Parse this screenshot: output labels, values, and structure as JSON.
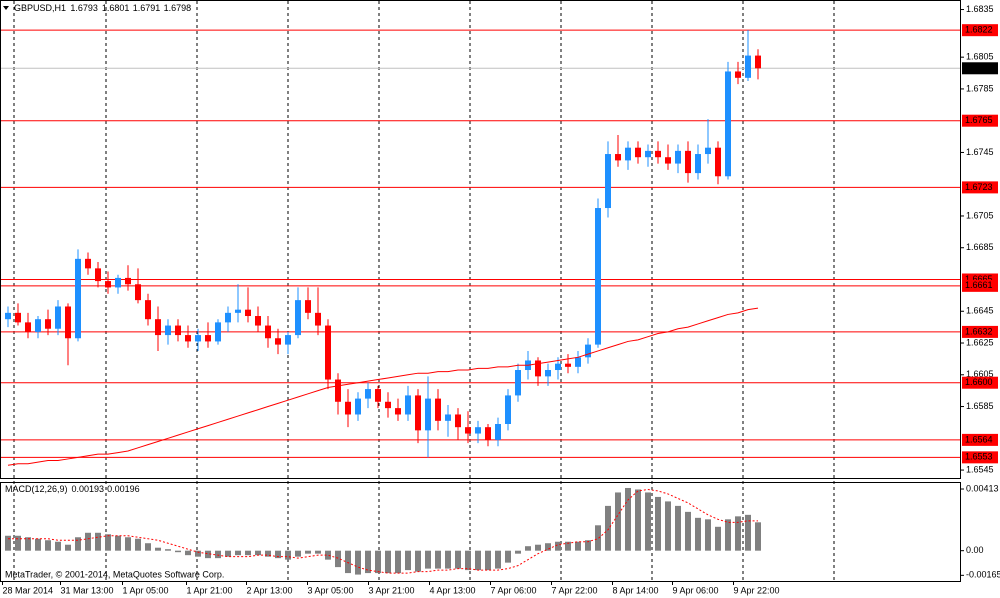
{
  "chart_data": [
    {
      "type": "candlestick",
      "title": "GBPUSD,H1",
      "header_values": [
        1.6793,
        1.6801,
        1.6791,
        1.6798
      ],
      "up_color": "#1e90ff",
      "down_color": "#ff0000",
      "open": [
        1.664,
        1.6644,
        1.6638,
        1.6632,
        1.664,
        1.6634,
        1.6648,
        1.6628,
        1.6678,
        1.6672,
        1.6664,
        1.666,
        1.6666,
        1.6662,
        1.6652,
        1.664,
        1.663,
        1.6636,
        1.663,
        1.6626,
        1.663,
        1.6626,
        1.6638,
        1.6644,
        1.6646,
        1.6642,
        1.6636,
        1.6628,
        1.6624,
        1.663,
        1.6652,
        1.6644,
        1.6636,
        1.6602,
        1.6588,
        1.658,
        1.659,
        1.6596,
        1.6588,
        1.6584,
        1.658,
        1.6592,
        1.657,
        1.659,
        1.6576,
        1.658,
        1.6572,
        1.6568,
        1.6572,
        1.6564,
        1.6574,
        1.6592,
        1.6608,
        1.6614,
        1.6604,
        1.6608,
        1.6612,
        1.661,
        1.6616,
        1.6624,
        1.671,
        1.6744,
        1.674,
        1.6748,
        1.6742,
        1.6746,
        1.6742,
        1.6738,
        1.6746,
        1.6732,
        1.6744,
        1.6748,
        1.673,
        1.6796,
        1.6792,
        1.6806
      ],
      "high": [
        1.6648,
        1.665,
        1.6644,
        1.6642,
        1.6646,
        1.6652,
        1.665,
        1.6684,
        1.6682,
        1.6676,
        1.667,
        1.6668,
        1.6674,
        1.6672,
        1.6656,
        1.6648,
        1.664,
        1.664,
        1.6636,
        1.6634,
        1.6638,
        1.664,
        1.6648,
        1.6662,
        1.666,
        1.6648,
        1.6642,
        1.6634,
        1.6632,
        1.666,
        1.666,
        1.666,
        1.664,
        1.6606,
        1.6596,
        1.6594,
        1.66,
        1.6598,
        1.6594,
        1.659,
        1.6598,
        1.6596,
        1.6604,
        1.6596,
        1.6586,
        1.6584,
        1.6582,
        1.6576,
        1.6574,
        1.6578,
        1.6596,
        1.6612,
        1.662,
        1.6616,
        1.6612,
        1.6616,
        1.6618,
        1.662,
        1.6628,
        1.6716,
        1.6752,
        1.6756,
        1.6752,
        1.6752,
        1.675,
        1.6752,
        1.675,
        1.675,
        1.6752,
        1.675,
        1.6766,
        1.6752,
        1.6802,
        1.6802,
        1.6822,
        1.681
      ],
      "low": [
        1.6635,
        1.6636,
        1.6628,
        1.6628,
        1.663,
        1.663,
        1.6611,
        1.6626,
        1.6668,
        1.666,
        1.6656,
        1.6656,
        1.6658,
        1.665,
        1.6636,
        1.662,
        1.6624,
        1.6626,
        1.6622,
        1.662,
        1.6622,
        1.6624,
        1.6632,
        1.6638,
        1.6638,
        1.6632,
        1.6622,
        1.6618,
        1.6618,
        1.6628,
        1.664,
        1.663,
        1.6596,
        1.658,
        1.6572,
        1.6576,
        1.6584,
        1.6584,
        1.6578,
        1.6576,
        1.6576,
        1.6562,
        1.6553,
        1.657,
        1.6566,
        1.6564,
        1.6562,
        1.6562,
        1.656,
        1.656,
        1.657,
        1.6588,
        1.6602,
        1.6598,
        1.6598,
        1.6602,
        1.6606,
        1.6606,
        1.6612,
        1.6622,
        1.6704,
        1.6736,
        1.6734,
        1.6738,
        1.6736,
        1.6738,
        1.6734,
        1.6732,
        1.6726,
        1.6728,
        1.6738,
        1.6725,
        1.6728,
        1.6788,
        1.679,
        1.6791
      ],
      "close": [
        1.6644,
        1.6638,
        1.6632,
        1.664,
        1.6634,
        1.6648,
        1.6628,
        1.6678,
        1.6672,
        1.6664,
        1.666,
        1.6666,
        1.6662,
        1.6652,
        1.664,
        1.663,
        1.6636,
        1.663,
        1.6626,
        1.663,
        1.6626,
        1.6638,
        1.6644,
        1.6646,
        1.6642,
        1.6636,
        1.6628,
        1.6624,
        1.663,
        1.6652,
        1.6644,
        1.6636,
        1.6602,
        1.6588,
        1.658,
        1.659,
        1.6596,
        1.6588,
        1.6584,
        1.658,
        1.6592,
        1.657,
        1.659,
        1.6576,
        1.658,
        1.6572,
        1.6568,
        1.6572,
        1.6564,
        1.6574,
        1.6592,
        1.6608,
        1.6614,
        1.6604,
        1.6608,
        1.6612,
        1.661,
        1.6616,
        1.6624,
        1.671,
        1.6744,
        1.674,
        1.6748,
        1.6742,
        1.6746,
        1.6742,
        1.6738,
        1.6746,
        1.6732,
        1.6744,
        1.6748,
        1.673,
        1.6796,
        1.6792,
        1.6806,
        1.6798
      ],
      "ma": {
        "color": "#ff0000",
        "values": [
          1.6548,
          1.6549,
          1.6549,
          1.655,
          1.6551,
          1.6551,
          1.6552,
          1.6553,
          1.6554,
          1.6555,
          1.6555,
          1.6556,
          1.6557,
          1.6559,
          1.6561,
          1.6563,
          1.6565,
          1.6567,
          1.6569,
          1.6571,
          1.6573,
          1.6575,
          1.6577,
          1.6579,
          1.6581,
          1.6583,
          1.6585,
          1.6587,
          1.6589,
          1.6591,
          1.6593,
          1.6595,
          1.6597,
          1.6598,
          1.6599,
          1.66,
          1.6601,
          1.6602,
          1.6603,
          1.6604,
          1.6605,
          1.6606,
          1.6606,
          1.6607,
          1.6607,
          1.6608,
          1.6608,
          1.6609,
          1.6609,
          1.661,
          1.661,
          1.6611,
          1.6611,
          1.6612,
          1.6613,
          1.6614,
          1.6615,
          1.6616,
          1.6618,
          1.662,
          1.6622,
          1.6624,
          1.6626,
          1.6627,
          1.6629,
          1.6631,
          1.6632,
          1.6634,
          1.6635,
          1.6637,
          1.6639,
          1.6641,
          1.6643,
          1.6644,
          1.6646,
          1.6647
        ]
      },
      "levels": {
        "color": "#ff0000",
        "values": [
          1.6822,
          1.6765,
          1.6723,
          1.6665,
          1.6661,
          1.6632,
          {
            "value": 1.66,
            "label": "1.6600"
          },
          1.6564,
          1.6553
        ]
      },
      "current_price": 1.6798,
      "ylim": [
        1.654,
        1.6841
      ],
      "yticks": [
        1.6835,
        1.6805,
        1.6785,
        1.6745,
        1.6705,
        1.6685,
        1.6645,
        1.6625,
        1.6605,
        1.6585,
        1.6545
      ],
      "xgrid": [
        0.6,
        9.8,
        18.9,
        28,
        37.1,
        46.2,
        55.3,
        64.4,
        73.5,
        82.6
      ]
    },
    {
      "type": "macd",
      "title": "MACD(12,26,9)",
      "header_values": [
        0.00193,
        0.00196
      ],
      "histogram": {
        "color": "#808080",
        "values": [
          0.001,
          0.001,
          0.0009,
          0.0008,
          0.0007,
          0.0006,
          0.0004,
          0.0009,
          0.0012,
          0.0012,
          0.0011,
          0.001,
          0.0009,
          0.0008,
          0.0005,
          0.0002,
          0.0001,
          -0.0001,
          -0.0003,
          -0.0004,
          -0.0005,
          -0.0005,
          -0.0004,
          -0.0003,
          -0.0003,
          -0.0003,
          -0.0004,
          -0.0005,
          -0.0006,
          -0.0004,
          -0.0002,
          -0.0002,
          -0.0006,
          -0.0011,
          -0.0015,
          -0.0016,
          -0.0015,
          -0.0015,
          -0.0015,
          -0.0015,
          -0.0013,
          -0.0014,
          -0.0012,
          -0.0012,
          -0.0012,
          -0.0012,
          -0.0013,
          -0.0013,
          -0.0013,
          -0.0012,
          -0.0008,
          -0.0002,
          0.0003,
          0.0004,
          0.0005,
          0.0006,
          0.0006,
          0.0006,
          0.0007,
          0.0017,
          0.003,
          0.0039,
          0.0042,
          0.0041,
          0.0039,
          0.0036,
          0.0033,
          0.003,
          0.0026,
          0.0022,
          0.0021,
          0.0016,
          0.0021,
          0.0023,
          0.0024,
          0.0019
        ]
      },
      "signal": {
        "color": "#ff0000",
        "values": [
          0.0008,
          0.0008,
          0.0008,
          0.0008,
          0.0008,
          0.0007,
          0.0007,
          0.0007,
          0.0008,
          0.0009,
          0.001,
          0.001,
          0.001,
          0.0009,
          0.0008,
          0.0007,
          0.0005,
          0.0003,
          0.0001,
          -0.0001,
          -0.0002,
          -0.0003,
          -0.0004,
          -0.0004,
          -0.0004,
          -0.0003,
          -0.0003,
          -0.0004,
          -0.0004,
          -0.0005,
          -0.0004,
          -0.0003,
          -0.0003,
          -0.0005,
          -0.0008,
          -0.0011,
          -0.0013,
          -0.0014,
          -0.0015,
          -0.0015,
          -0.0015,
          -0.0014,
          -0.0014,
          -0.0013,
          -0.0013,
          -0.0012,
          -0.0012,
          -0.0013,
          -0.0013,
          -0.0013,
          -0.0012,
          -0.001,
          -0.0006,
          -0.0002,
          0.0001,
          0.0004,
          0.0005,
          0.0006,
          0.0006,
          0.0008,
          0.0014,
          0.0024,
          0.0034,
          0.004,
          0.0041,
          0.004,
          0.0038,
          0.0035,
          0.0032,
          0.0028,
          0.0024,
          0.0021,
          0.0019,
          0.0019,
          0.002,
          0.002
        ]
      },
      "ylim": [
        -0.00203,
        0.0046
      ],
      "yticks": [
        0.00413,
        {
          "value": 0,
          "label": "0.00"
        },
        -0.00165
      ],
      "xticks": [
        {
          "value": -0.6,
          "label": "28 Mar 2014"
        },
        {
          "value": 5.2,
          "label": "31 Mar 13:00"
        },
        {
          "value": 11.4,
          "label": "1 Apr 05:00"
        },
        {
          "value": 17.8,
          "label": "1 Apr 21:00"
        },
        {
          "value": 23.8,
          "label": "2 Apr 13:00"
        },
        {
          "value": 29.9,
          "label": "3 Apr 05:00"
        },
        {
          "value": 36,
          "label": "3 Apr 21:00"
        },
        {
          "value": 42.1,
          "label": "4 Apr 13:00"
        },
        {
          "value": 48.2,
          "label": "7 Apr 06:00"
        },
        {
          "value": 54.3,
          "label": "7 Apr 22:00"
        },
        {
          "value": 60.4,
          "label": "8 Apr 14:00"
        },
        {
          "value": 66.4,
          "label": "9 Apr 06:00"
        },
        {
          "value": 72.5,
          "label": "9 Apr 22:00"
        }
      ]
    }
  ],
  "footer": "MetaTrader, © 2001-2014, MetaQuotes Software Corp."
}
